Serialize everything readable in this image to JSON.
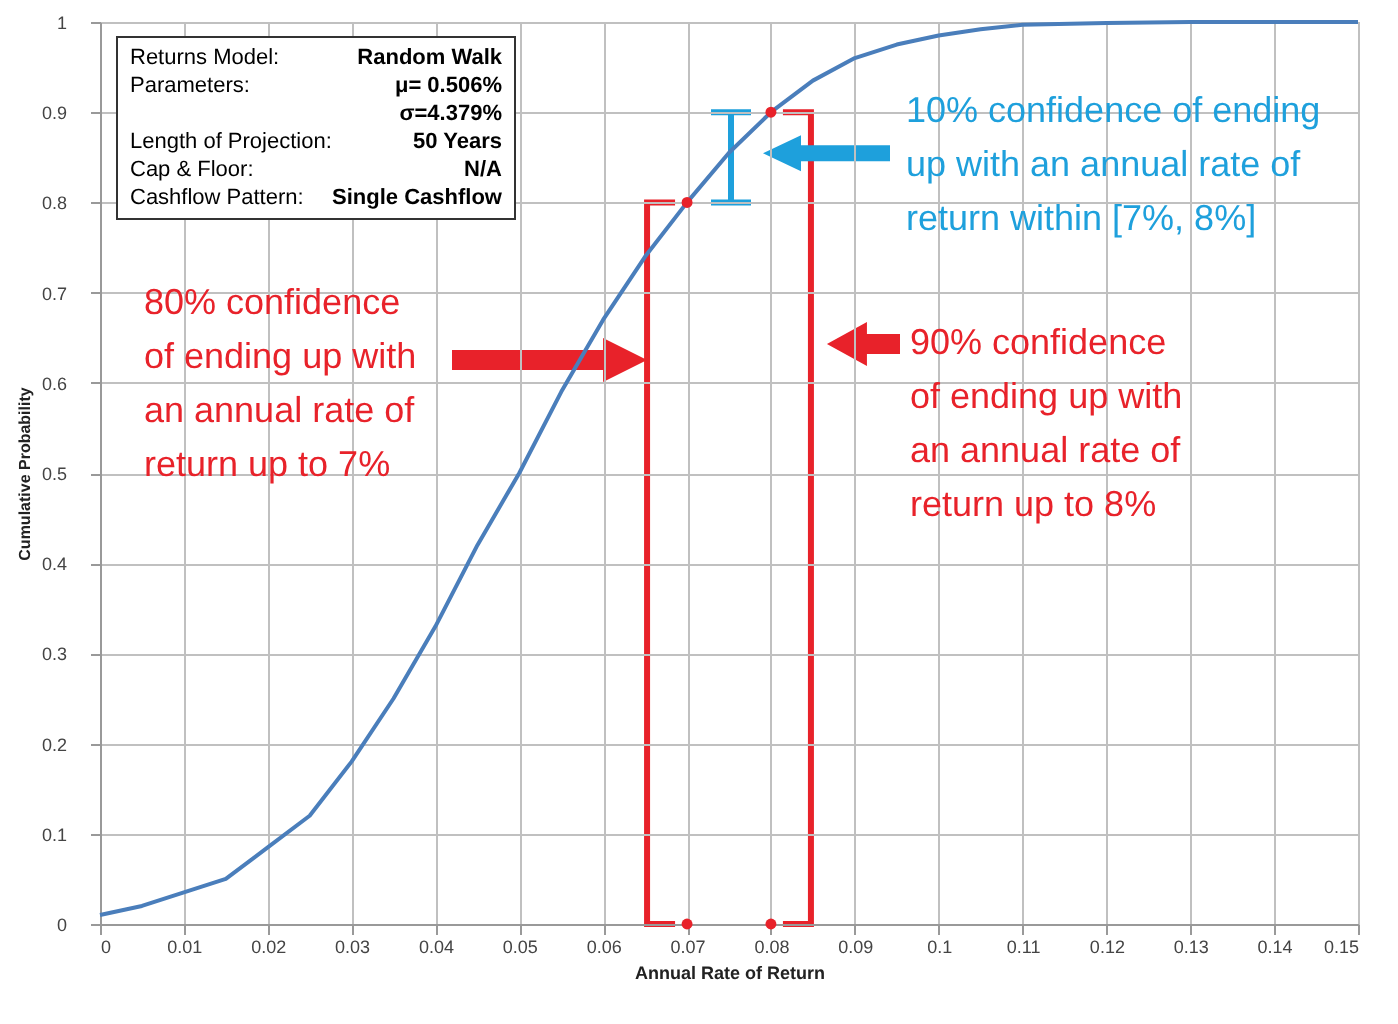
{
  "chart_data": {
    "type": "line",
    "xlabel": "Annual Rate of Return",
    "ylabel": "Cumulative Probability",
    "xlim": [
      0,
      0.15
    ],
    "xticks": [
      0,
      0.01,
      0.02,
      0.03,
      0.04,
      0.05,
      0.06,
      0.07,
      0.08,
      0.09,
      0.1,
      0.11,
      0.12,
      0.13,
      0.14,
      0.15
    ],
    "ylim": [
      0,
      1
    ],
    "yticks": [
      0,
      0.1,
      0.2,
      0.3,
      0.4,
      0.5,
      0.6,
      0.7,
      0.8,
      0.9,
      1
    ],
    "grid": true,
    "series": [
      {
        "color": "#4a7ebb",
        "marker": "none",
        "x": [
          0,
          0.005,
          0.01,
          0.015,
          0.02,
          0.025,
          0.03,
          0.035,
          0.04,
          0.045,
          0.05,
          0.055,
          0.06,
          0.065,
          0.07,
          0.075,
          0.08,
          0.085,
          0.09,
          0.095,
          0.1,
          0.105,
          0.11,
          0.12,
          0.13,
          0.14,
          0.15
        ],
        "values": [
          0.01,
          0.02,
          0.035,
          0.05,
          0.085,
          0.12,
          0.18,
          0.25,
          0.33,
          0.42,
          0.5,
          0.59,
          0.67,
          0.74,
          0.8,
          0.855,
          0.9,
          0.935,
          0.96,
          0.975,
          0.985,
          0.992,
          0.997,
          0.999,
          1,
          1,
          1
        ]
      },
      {
        "type": "scatter",
        "color": "#e8222a",
        "marker": "circle",
        "x": [
          0.07,
          0.07,
          0.08,
          0.08
        ],
        "values": [
          0.8,
          0,
          0.9,
          0
        ]
      }
    ],
    "annotations": [
      "Returns Model:",
      "Random Walk",
      "Parameters:",
      "μ= 0.506%",
      "σ=4.379%",
      "Length of Projection:",
      "50 Years",
      "Cap & Floor:",
      "N/A",
      "Cashflow Pattern:",
      "Single Cashflow",
      "80% confidence of ending up with an annual rate of return up to 7%",
      "90% confidence of ending up with an annual rate of return up to 8%",
      "10% confidence of ending up with an annual rate of return within [7%, 8%]"
    ]
  }
}
